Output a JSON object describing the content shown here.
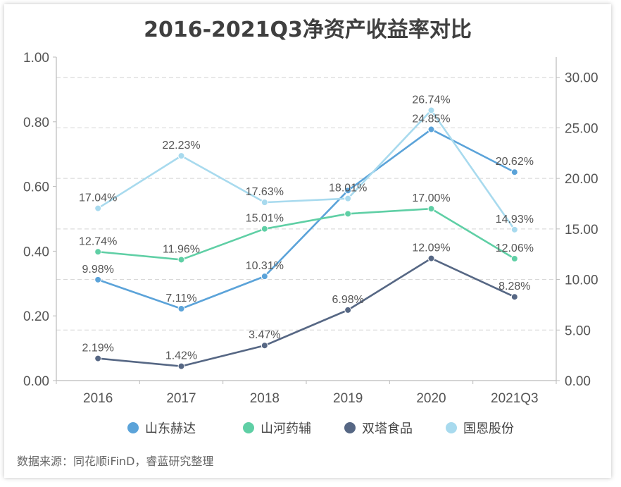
{
  "chart_data": {
    "type": "line",
    "title": "2016-2021Q3净资产收益率对比",
    "categories": [
      "2016",
      "2017",
      "2018",
      "2019",
      "2020",
      "2021Q3"
    ],
    "left_axis": {
      "ticks": [
        "0.00",
        "0.20",
        "0.40",
        "0.60",
        "0.80",
        "1.00"
      ],
      "range": [
        0,
        1
      ]
    },
    "right_axis": {
      "ticks": [
        "0.00",
        "5.00",
        "10.00",
        "15.00",
        "20.00",
        "25.00",
        "30.00"
      ],
      "range": [
        0,
        32
      ]
    },
    "grid": true,
    "legend_position": "bottom",
    "series": [
      {
        "name": "山东赫达",
        "color": "#5ba3d9",
        "values": [
          9.98,
          7.11,
          10.31,
          18.8,
          24.85,
          20.62
        ],
        "labels": [
          "9.98%",
          "7.11%",
          "10.31%",
          null,
          "24.85%",
          "20.62%"
        ]
      },
      {
        "name": "山河药辅",
        "color": "#5fcfa5",
        "values": [
          12.74,
          11.96,
          15.01,
          16.5,
          17.0,
          12.06
        ],
        "labels": [
          "12.74%",
          "11.96%",
          "15.01%",
          null,
          "17.00%",
          "12.06%"
        ]
      },
      {
        "name": "双塔食品",
        "color": "#566784",
        "values": [
          2.19,
          1.42,
          3.47,
          6.98,
          12.09,
          8.28
        ],
        "labels": [
          "2.19%",
          "1.42%",
          "3.47%",
          "6.98%",
          "12.09%",
          "8.28%"
        ]
      },
      {
        "name": "国恩股份",
        "color": "#a8daee",
        "values": [
          17.04,
          22.23,
          17.63,
          18.01,
          26.74,
          14.93
        ],
        "labels": [
          "17.04%",
          "22.23%",
          "17.63%",
          "18.01%",
          "26.74%",
          "14.93%"
        ]
      }
    ]
  },
  "source": "数据来源：同花顺iFinD，睿蓝研究整理"
}
